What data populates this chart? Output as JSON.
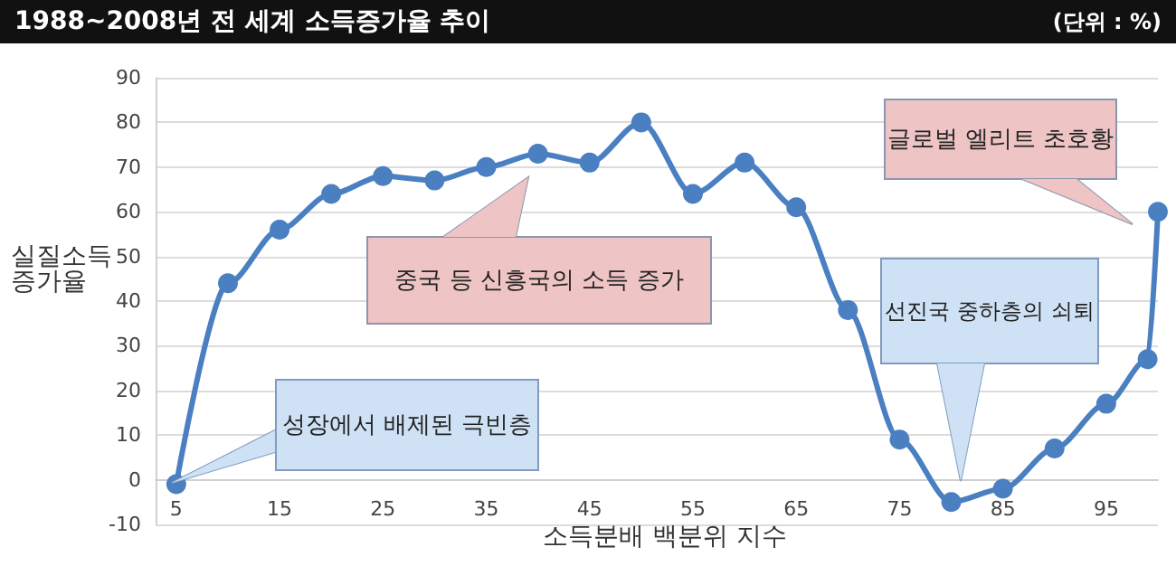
{
  "chart_data": {
    "type": "line",
    "title": "1988~2008년 전 세계 소득증가율 추이",
    "subtitle": "(단위 : %)",
    "xlabel": "소득분배 백분위 지수",
    "ylabel": "실질소득\n증가율",
    "x": [
      5,
      10,
      15,
      20,
      25,
      30,
      35,
      40,
      45,
      50,
      55,
      60,
      65,
      70,
      75,
      80,
      85,
      90,
      95,
      99,
      100
    ],
    "series": [
      {
        "color": "#4a7fc1",
        "values": [
          -1,
          44,
          56,
          64,
          68,
          67,
          70,
          73,
          71,
          80,
          64,
          71,
          61,
          38,
          9,
          -5,
          -2,
          7,
          17,
          27,
          60
        ]
      }
    ],
    "xlim": [
      3,
      100
    ],
    "xticks": [
      5,
      15,
      25,
      35,
      45,
      55,
      65,
      75,
      85,
      95
    ],
    "ylim": [
      -10,
      90
    ],
    "yticks": [
      -10,
      0,
      10,
      20,
      30,
      40,
      50,
      60,
      70,
      80,
      90
    ],
    "grid": "y",
    "marker": "circle",
    "line_style": "solid",
    "annotations": [
      "성장에서 배제된 극빈층",
      "중국 등 신흥국의 소득 증가",
      "선진국 중하층의 쇠퇴",
      "글로벌 엘리트 초호황"
    ]
  }
}
